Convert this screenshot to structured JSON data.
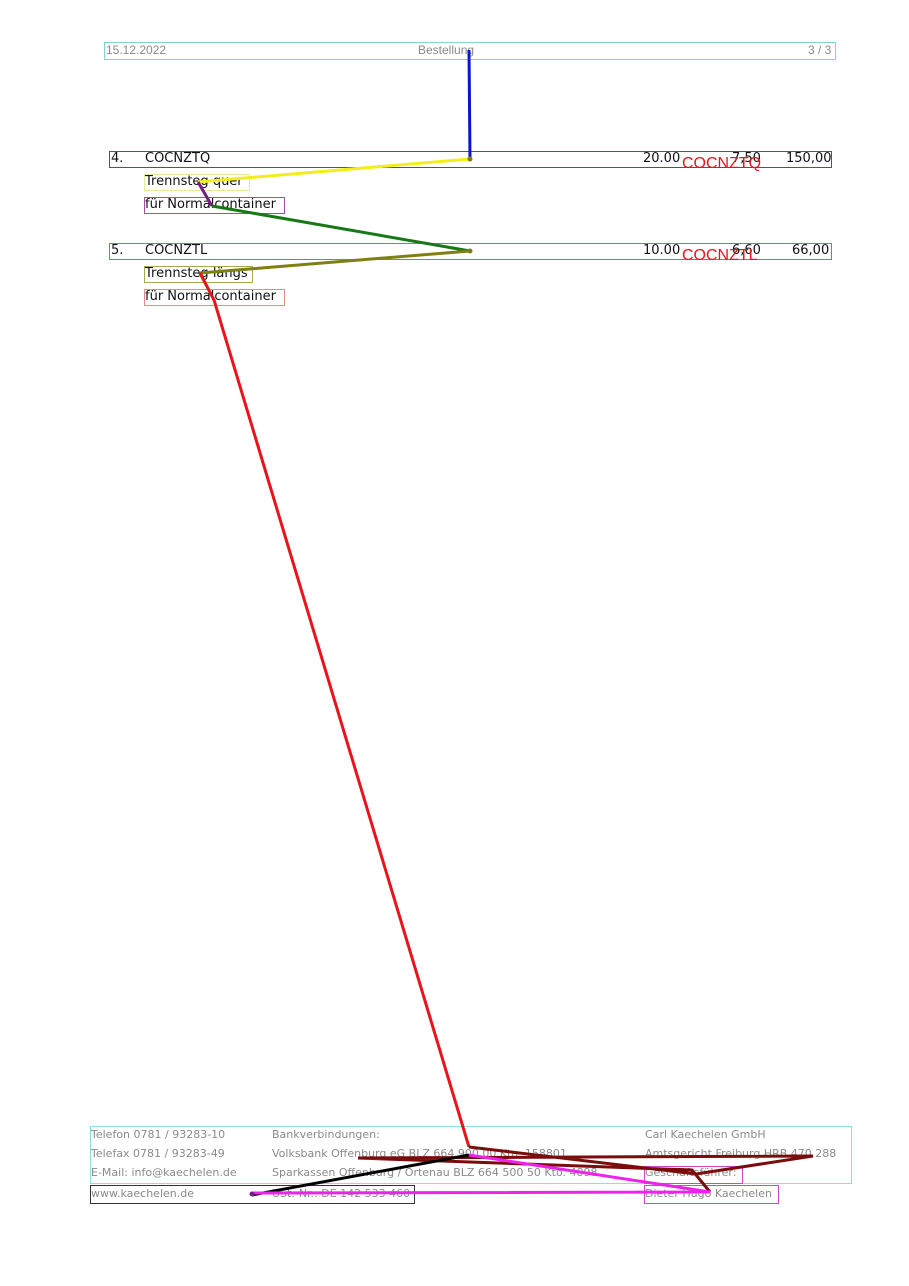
{
  "header": {
    "date": "15.12.2022",
    "title": "Bestellung",
    "page": "3 / 3"
  },
  "items": [
    {
      "pos": "4.",
      "code": "COCNZTQ",
      "qty": "20.00",
      "price": "7,50",
      "total": "150,00",
      "desc1": "Trennsteg quer",
      "desc2": "für Normalcontainer",
      "overlay_code": "COCNZTQ"
    },
    {
      "pos": "5.",
      "code": "COCNZTL",
      "qty": "10.00",
      "price": "6,60",
      "total": "66,00",
      "desc1": "Trennsteg längs",
      "desc2": "für Normalcontainer",
      "overlay_code": "COCNZTL"
    }
  ],
  "footer": {
    "col1": [
      "Telefon  0781 / 93283-10",
      "Telefax  0781 / 93283-49",
      "E-Mail: info@kaechelen.de",
      "www.kaechelen.de"
    ],
    "col2": [
      "Bankverbindungen:",
      "Volksbank Offenburg eG BLZ 664 900 00 Kto. 158801",
      "Sparkassen Offenburg / Ortenau BLZ 664 500 50 Kto. 4898",
      "USt.-Nr.: DE 142 533 460"
    ],
    "col3": [
      "Carl Kaechelen GmbH",
      "Amtsgericht Freiburg HRB 470 288",
      "Geschäftsführer:",
      "Dieter Hugo Kaechelen"
    ]
  },
  "colors": {
    "blue": "#0a14cc",
    "yellow": "#f2ee1c",
    "purple": "#7a1a8a",
    "green": "#157a15",
    "olive": "#7f7f14",
    "red": "#e8141c",
    "darkred": "#7a0c0c",
    "black": "#000000",
    "magenta": "#ee22ee"
  }
}
